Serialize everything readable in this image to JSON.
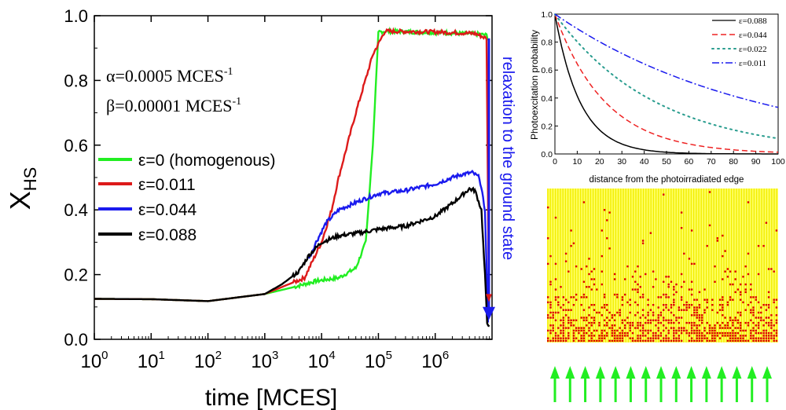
{
  "chart_data": [
    {
      "type": "line",
      "xlabel": "time [MCES]",
      "ylabel_main": "X",
      "ylabel_sub": "HS",
      "xscale": "log",
      "xlim": [
        1,
        10000000
      ],
      "ylim": [
        0.0,
        1.0
      ],
      "x_ticks": [
        {
          "base": "10",
          "exp": "0"
        },
        {
          "base": "10",
          "exp": "1"
        },
        {
          "base": "10",
          "exp": "2"
        },
        {
          "base": "10",
          "exp": "3"
        },
        {
          "base": "10",
          "exp": "4"
        },
        {
          "base": "10",
          "exp": "5"
        },
        {
          "base": "10",
          "exp": "6"
        }
      ],
      "y_ticks": [
        "0.0",
        "0.2",
        "0.4",
        "0.6",
        "0.8",
        "1.0"
      ],
      "params": [
        {
          "main": "α=0.0005 MCES",
          "sup": "-1"
        },
        {
          "main": "β=0.00001 MCES",
          "sup": "-1"
        }
      ],
      "legend_position": "left-middle",
      "series": [
        {
          "name": "ε=0 (homogenous)",
          "color": "#22ee22",
          "x": [
            1,
            10,
            100,
            1000,
            3000,
            8000,
            20000,
            40000,
            60000,
            80000,
            100000,
            130000,
            1000000,
            5000000,
            8000000,
            9000000
          ],
          "y": [
            0.125,
            0.124,
            0.118,
            0.14,
            0.16,
            0.18,
            0.19,
            0.22,
            0.3,
            0.6,
            0.95,
            0.952,
            0.948,
            0.944,
            0.94,
            0.92
          ]
        },
        {
          "name": "ε=0.011",
          "color": "#dd1a1a",
          "x": [
            1,
            10,
            100,
            1000,
            5000,
            10000,
            15000,
            20000,
            40000,
            80000,
            130000,
            1000000,
            5000000,
            8000000,
            8800000
          ],
          "y": [
            0.125,
            0.124,
            0.118,
            0.14,
            0.19,
            0.3,
            0.4,
            0.5,
            0.7,
            0.88,
            0.952,
            0.95,
            0.945,
            0.93,
            0.12
          ]
        },
        {
          "name": "ε=0.044",
          "color": "#1a1aee",
          "x": [
            6000,
            8000,
            12000,
            20000,
            50000,
            100000,
            300000,
            1000000,
            2000000,
            3000000,
            4500000,
            6000000,
            7500000,
            8500000
          ],
          "y": [
            0.25,
            0.3,
            0.36,
            0.4,
            0.43,
            0.45,
            0.46,
            0.48,
            0.5,
            0.51,
            0.515,
            0.5,
            0.4,
            0.05
          ]
        },
        {
          "name": "ε=0.088",
          "color": "#000000",
          "x": [
            1,
            10,
            100,
            1000,
            2000,
            4000,
            6000,
            10000,
            20000,
            50000,
            100000,
            300000,
            1000000,
            2000000,
            4000000,
            5000000,
            6500000,
            7500000,
            8200000,
            9000000
          ],
          "y": [
            0.125,
            0.124,
            0.118,
            0.14,
            0.17,
            0.21,
            0.26,
            0.3,
            0.32,
            0.33,
            0.34,
            0.35,
            0.38,
            0.42,
            0.465,
            0.46,
            0.4,
            0.2,
            0.05,
            0.045
          ]
        }
      ],
      "annotation": {
        "text": "relaxation to the ground state",
        "color": "#1a1aee"
      }
    },
    {
      "type": "line",
      "xlabel": "distance from the photoirradiated edge",
      "ylabel": "Photoexcitation probability",
      "xlim": [
        0,
        100
      ],
      "ylim": [
        0.0,
        1.0
      ],
      "x_ticks": [
        "0",
        "10",
        "20",
        "30",
        "40",
        "50",
        "60",
        "70",
        "80",
        "90",
        "100"
      ],
      "y_ticks": [
        "0.0",
        "0.2",
        "0.4",
        "0.6",
        "0.8",
        "1.0"
      ],
      "legend_position": "top-right",
      "series": [
        {
          "name": "ε=0.088",
          "color": "#000000",
          "dash": "solid",
          "decay": 0.088
        },
        {
          "name": "ε=0.044",
          "color": "#ee2222",
          "dash": "dashed",
          "decay": 0.044
        },
        {
          "name": "ε=0.022",
          "color": "#2a9d8f",
          "dash": "dotted",
          "decay": 0.022
        },
        {
          "name": "ε=0.011",
          "color": "#1a1aee",
          "dash": "dashdot",
          "decay": 0.011
        }
      ]
    }
  ],
  "lattice": {
    "background": "#ffff66",
    "site_color": "#f2ee00",
    "excited_color": "#dd0000"
  },
  "arrows": {
    "count": 15,
    "color": "#22ee22"
  }
}
